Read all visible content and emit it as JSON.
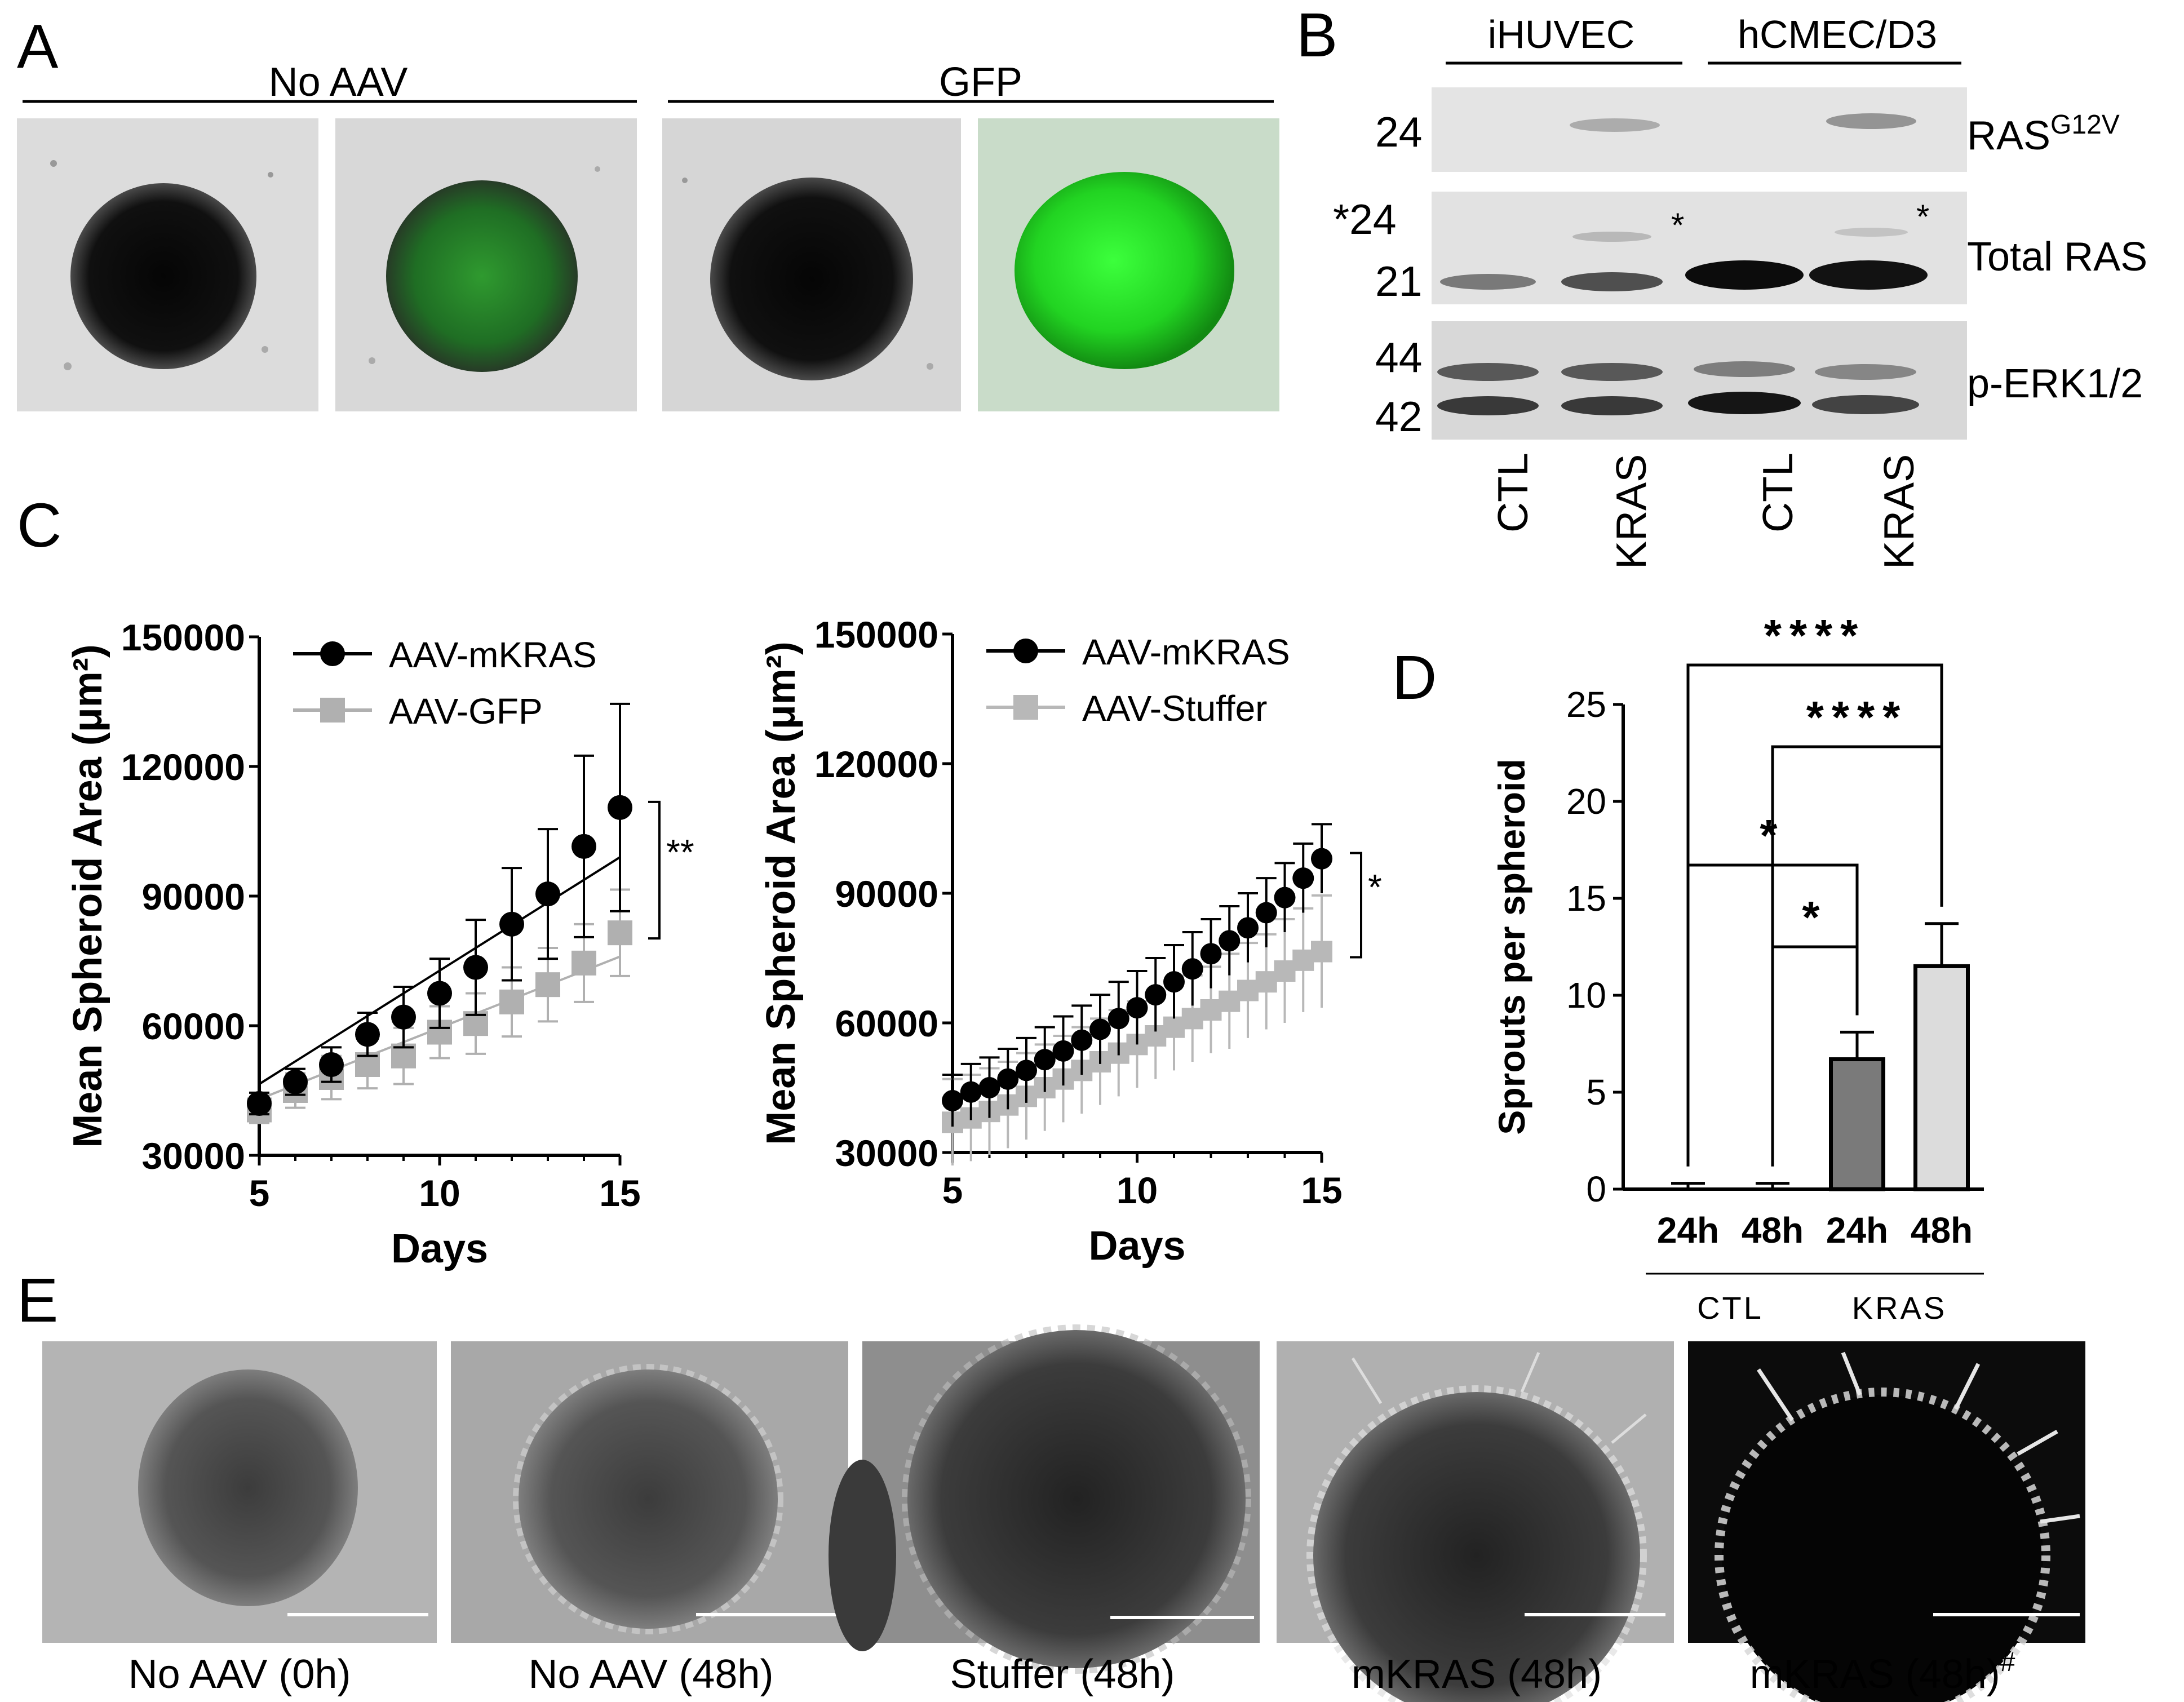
{
  "panels": {
    "A": {
      "letter": "A",
      "groups": [
        "No AAV",
        "GFP"
      ],
      "images": [
        {
          "kind": "brightfield"
        },
        {
          "kind": "fluorescence-dim"
        },
        {
          "kind": "brightfield"
        },
        {
          "kind": "fluorescence-bright"
        }
      ]
    },
    "B": {
      "letter": "B",
      "cell_lines": [
        "iHUVEC",
        "hCMEC/D3"
      ],
      "blots": [
        {
          "label": "RAS",
          "label_sup": "G12V",
          "mw": [
            "24"
          ]
        },
        {
          "label": "Total RAS",
          "mw": [
            "*24",
            "21"
          ],
          "marks": [
            "*",
            "*"
          ]
        },
        {
          "label": "p-ERK1/2",
          "mw": [
            "44",
            "42"
          ]
        }
      ],
      "lanes": [
        "CTL",
        "KRAS",
        "CTL",
        "KRAS"
      ]
    },
    "C": {
      "letter": "C"
    },
    "D": {
      "letter": "D"
    },
    "E": {
      "letter": "E",
      "images": [
        {
          "caption": "No AAV (0h)",
          "bg": "#b4b4b4"
        },
        {
          "caption": "No AAV (48h)",
          "bg": "#a8a8a8"
        },
        {
          "caption": "Stuffer (48h)",
          "bg": "#8e8e8e"
        },
        {
          "caption": "mKRAS (48h)",
          "bg": "#b0b0b0"
        },
        {
          "caption": "mKRAS (48h)",
          "caption_sup": "#",
          "bg": "#0c0c0c"
        }
      ]
    }
  },
  "chart_data": [
    {
      "type": "line",
      "panel": "C-left",
      "xlabel": "Days",
      "ylabel": "Mean Spheroid Area (μm²)",
      "xlim": [
        5,
        15
      ],
      "ylim": [
        30000,
        150000
      ],
      "xticks": [
        5,
        10,
        15
      ],
      "yticks": [
        30000,
        60000,
        90000,
        120000,
        150000
      ],
      "legend_position": "top-left",
      "series": [
        {
          "name": "AAV-mKRAS",
          "color": "#000000",
          "marker": "circle",
          "x": [
            5,
            6,
            7,
            8,
            9,
            10,
            11,
            12,
            13,
            14,
            15
          ],
          "y": [
            42000,
            47000,
            51000,
            58000,
            62000,
            67500,
            73500,
            83500,
            90500,
            101500,
            110500
          ],
          "err": [
            2500,
            3000,
            4000,
            5000,
            7000,
            8000,
            11000,
            13000,
            15000,
            21000,
            24000
          ],
          "fit": [
            [
              5,
              46500
            ],
            [
              15,
              99000
            ]
          ]
        },
        {
          "name": "AAV-GFP",
          "color": "#b0b0b0",
          "marker": "square",
          "x": [
            5,
            6,
            7,
            8,
            9,
            10,
            11,
            12,
            13,
            14,
            15
          ],
          "y": [
            40500,
            45000,
            48000,
            51000,
            53000,
            58500,
            60500,
            65500,
            69500,
            74500,
            81500
          ],
          "err": [
            3000,
            4000,
            5000,
            5500,
            6500,
            6000,
            7000,
            8000,
            8500,
            9000,
            10000
          ],
          "fit": [
            [
              5,
              43000
            ],
            [
              15,
              76000
            ]
          ]
        }
      ],
      "significance": "**"
    },
    {
      "type": "line",
      "panel": "C-right",
      "xlabel": "Days",
      "ylabel": "Mean Spheroid Area (μm²)",
      "xlim": [
        5,
        15
      ],
      "ylim": [
        30000,
        150000
      ],
      "xticks": [
        5,
        10,
        15
      ],
      "yticks": [
        30000,
        60000,
        90000,
        120000,
        150000
      ],
      "legend_position": "top-left",
      "series": [
        {
          "name": "AAV-mKRAS",
          "color": "#000000",
          "marker": "circle",
          "x": [
            5,
            5.5,
            6,
            6.5,
            7,
            7.5,
            8,
            8.5,
            9,
            9.5,
            10,
            10.5,
            11,
            11.5,
            12,
            12.5,
            13,
            13.5,
            14,
            14.5,
            15
          ],
          "y": [
            42000,
            44000,
            45000,
            47000,
            49000,
            51500,
            53500,
            56000,
            58500,
            61000,
            63500,
            66500,
            69500,
            72500,
            76000,
            79000,
            82000,
            85500,
            89000,
            93500,
            98000
          ],
          "err": [
            6000,
            6500,
            7000,
            7000,
            7500,
            7500,
            8000,
            8000,
            8000,
            8500,
            8500,
            8500,
            8500,
            8500,
            8000,
            8000,
            8000,
            8000,
            8000,
            8000,
            8000
          ]
        },
        {
          "name": "AAV-Stuffer",
          "color": "#b8b8b8",
          "marker": "square",
          "x": [
            5,
            5.5,
            6,
            6.5,
            7,
            7.5,
            8,
            8.5,
            9,
            9.5,
            10,
            10.5,
            11,
            11.5,
            12,
            12.5,
            13,
            13.5,
            14,
            14.5,
            15
          ],
          "y": [
            37000,
            38000,
            39500,
            41000,
            43000,
            45000,
            47000,
            49000,
            51000,
            53000,
            55000,
            57000,
            59000,
            61000,
            63000,
            65000,
            67500,
            69500,
            72000,
            74500,
            76500
          ],
          "err": [
            10000,
            10000,
            10000,
            10000,
            10000,
            10000,
            10000,
            10000,
            10000,
            10000,
            10000,
            10000,
            10000,
            10000,
            10000,
            11000,
            11000,
            11000,
            12000,
            12000,
            13000
          ]
        }
      ],
      "significance": "*"
    },
    {
      "type": "bar",
      "panel": "D",
      "ylabel": "Sprouts per spheroid",
      "ylim": [
        0,
        25
      ],
      "yticks": [
        0,
        5,
        10,
        15,
        20,
        25
      ],
      "categories": [
        "24h",
        "48h",
        "24h",
        "48h"
      ],
      "groups": [
        {
          "name": "CTL",
          "range": [
            0,
            1
          ]
        },
        {
          "name": "KRAS",
          "range": [
            2,
            3
          ]
        }
      ],
      "values": [
        0,
        0,
        6.7,
        11.5
      ],
      "err": [
        0.3,
        0.3,
        1.4,
        2.2
      ],
      "colors": [
        "#ffffff",
        "#ffffff",
        "#7a7a7a",
        "#dcdcdc"
      ],
      "comparisons": [
        {
          "from": 0,
          "to": 3,
          "label": "****"
        },
        {
          "from": 1,
          "to": 3,
          "label": "****"
        },
        {
          "from": 0,
          "to": 2,
          "label": "*"
        },
        {
          "from": 1,
          "to": 2,
          "label": "*"
        }
      ]
    }
  ]
}
